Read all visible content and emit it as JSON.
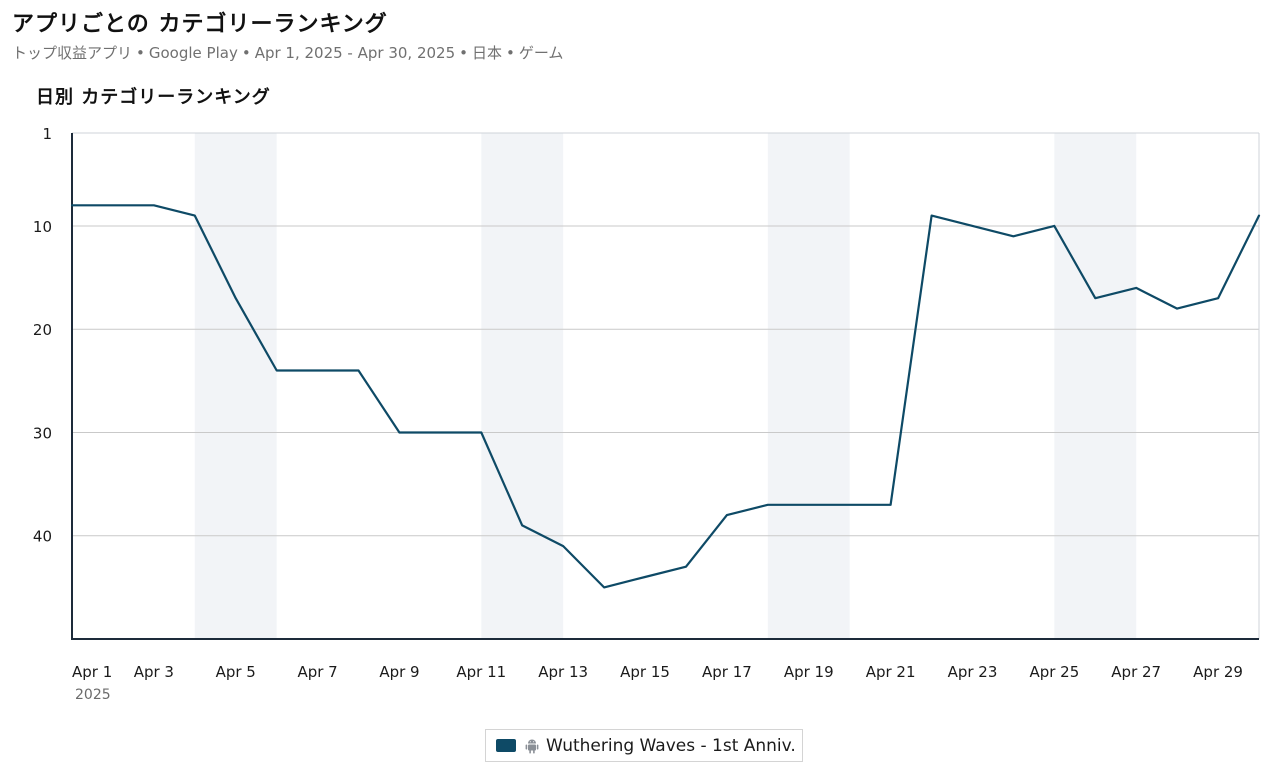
{
  "header": {
    "title": "アプリごとの カテゴリーランキング",
    "subtitle_parts": [
      "トップ収益アプリ",
      "Google Play",
      "Apr 1, 2025 - Apr 30, 2025",
      "日本",
      "ゲーム"
    ]
  },
  "chart_data": {
    "type": "line",
    "title": "日別 カテゴリーランキング",
    "xlabel": "",
    "ylabel": "",
    "x": [
      "Apr 1",
      "Apr 2",
      "Apr 3",
      "Apr 4",
      "Apr 5",
      "Apr 6",
      "Apr 7",
      "Apr 8",
      "Apr 9",
      "Apr 10",
      "Apr 11",
      "Apr 12",
      "Apr 13",
      "Apr 14",
      "Apr 15",
      "Apr 16",
      "Apr 17",
      "Apr 18",
      "Apr 19",
      "Apr 20",
      "Apr 21",
      "Apr 22",
      "Apr 23",
      "Apr 24",
      "Apr 25",
      "Apr 26",
      "Apr 27",
      "Apr 28",
      "Apr 29",
      "Apr 30"
    ],
    "x_tick_labels": [
      "Apr 1",
      "Apr 3",
      "Apr 5",
      "Apr 7",
      "Apr 9",
      "Apr 11",
      "Apr 13",
      "Apr 15",
      "Apr 17",
      "Apr 19",
      "Apr 21",
      "Apr 23",
      "Apr 25",
      "Apr 27",
      "Apr 29"
    ],
    "x_tick_dates": [
      "Apr 1",
      "Apr 3",
      "Apr 5",
      "Apr 7",
      "Apr 9",
      "Apr 11",
      "Apr 13",
      "Apr 15",
      "Apr 17",
      "Apr 19",
      "Apr 21",
      "Apr 23",
      "Apr 25",
      "Apr 27",
      "Apr 29"
    ],
    "x_year_label": "2025",
    "y_reversed": true,
    "ylim": [
      1,
      50
    ],
    "y_ticks": [
      1,
      10,
      20,
      30,
      40
    ],
    "grid": true,
    "weekend_bands": [
      [
        "Apr 4",
        "Apr 6"
      ],
      [
        "Apr 11",
        "Apr 13"
      ],
      [
        "Apr 18",
        "Apr 20"
      ],
      [
        "Apr 25",
        "Apr 27"
      ]
    ],
    "series": [
      {
        "name": "Wuthering Waves - 1st Anniv.",
        "platform_icon": "android-icon",
        "color": "#0e4a66",
        "values": [
          8,
          8,
          8,
          9,
          17,
          24,
          24,
          24,
          30,
          30,
          30,
          39,
          41,
          45,
          44,
          43,
          38,
          37,
          37,
          37,
          37,
          9,
          10,
          11,
          10,
          17,
          16,
          18,
          17,
          9
        ]
      }
    ],
    "legend_position": "bottom-center"
  },
  "colors": {
    "line": "#0e4a66",
    "band": "#f2f4f7",
    "grid": "#c9c9c9",
    "axis": "#1d2b3a"
  }
}
